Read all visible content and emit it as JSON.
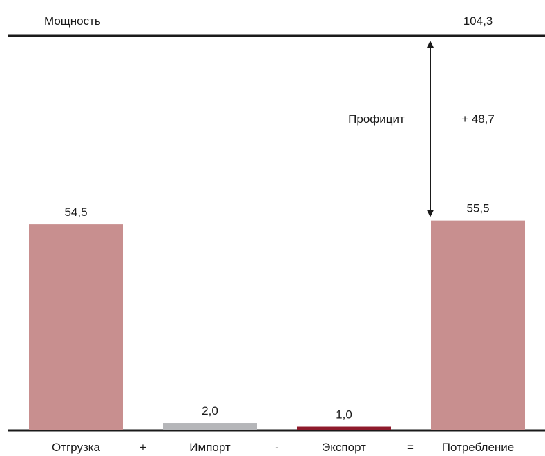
{
  "chart_data": {
    "type": "bar",
    "categories": [
      "Отгрузка",
      "Импорт",
      "Экспорт",
      "Потребление"
    ],
    "operators": [
      "+",
      "-",
      "="
    ],
    "values": [
      54.5,
      2.0,
      1.0,
      55.5
    ],
    "value_labels": [
      "54,5",
      "2,0",
      "1,0",
      "55,5"
    ],
    "colors": [
      "#c88f8f",
      "#b5b6b9",
      "#8e1b2c",
      "#c88f8f"
    ],
    "capacity": {
      "label": "Мощность",
      "value": 104.3,
      "value_label": "104,3"
    },
    "surplus": {
      "label": "Профицит",
      "value": 48.7,
      "value_label": "+ 48,7"
    },
    "ylim": [
      0,
      104.3
    ],
    "grid": false,
    "title": "",
    "xlabel": "",
    "ylabel": ""
  }
}
